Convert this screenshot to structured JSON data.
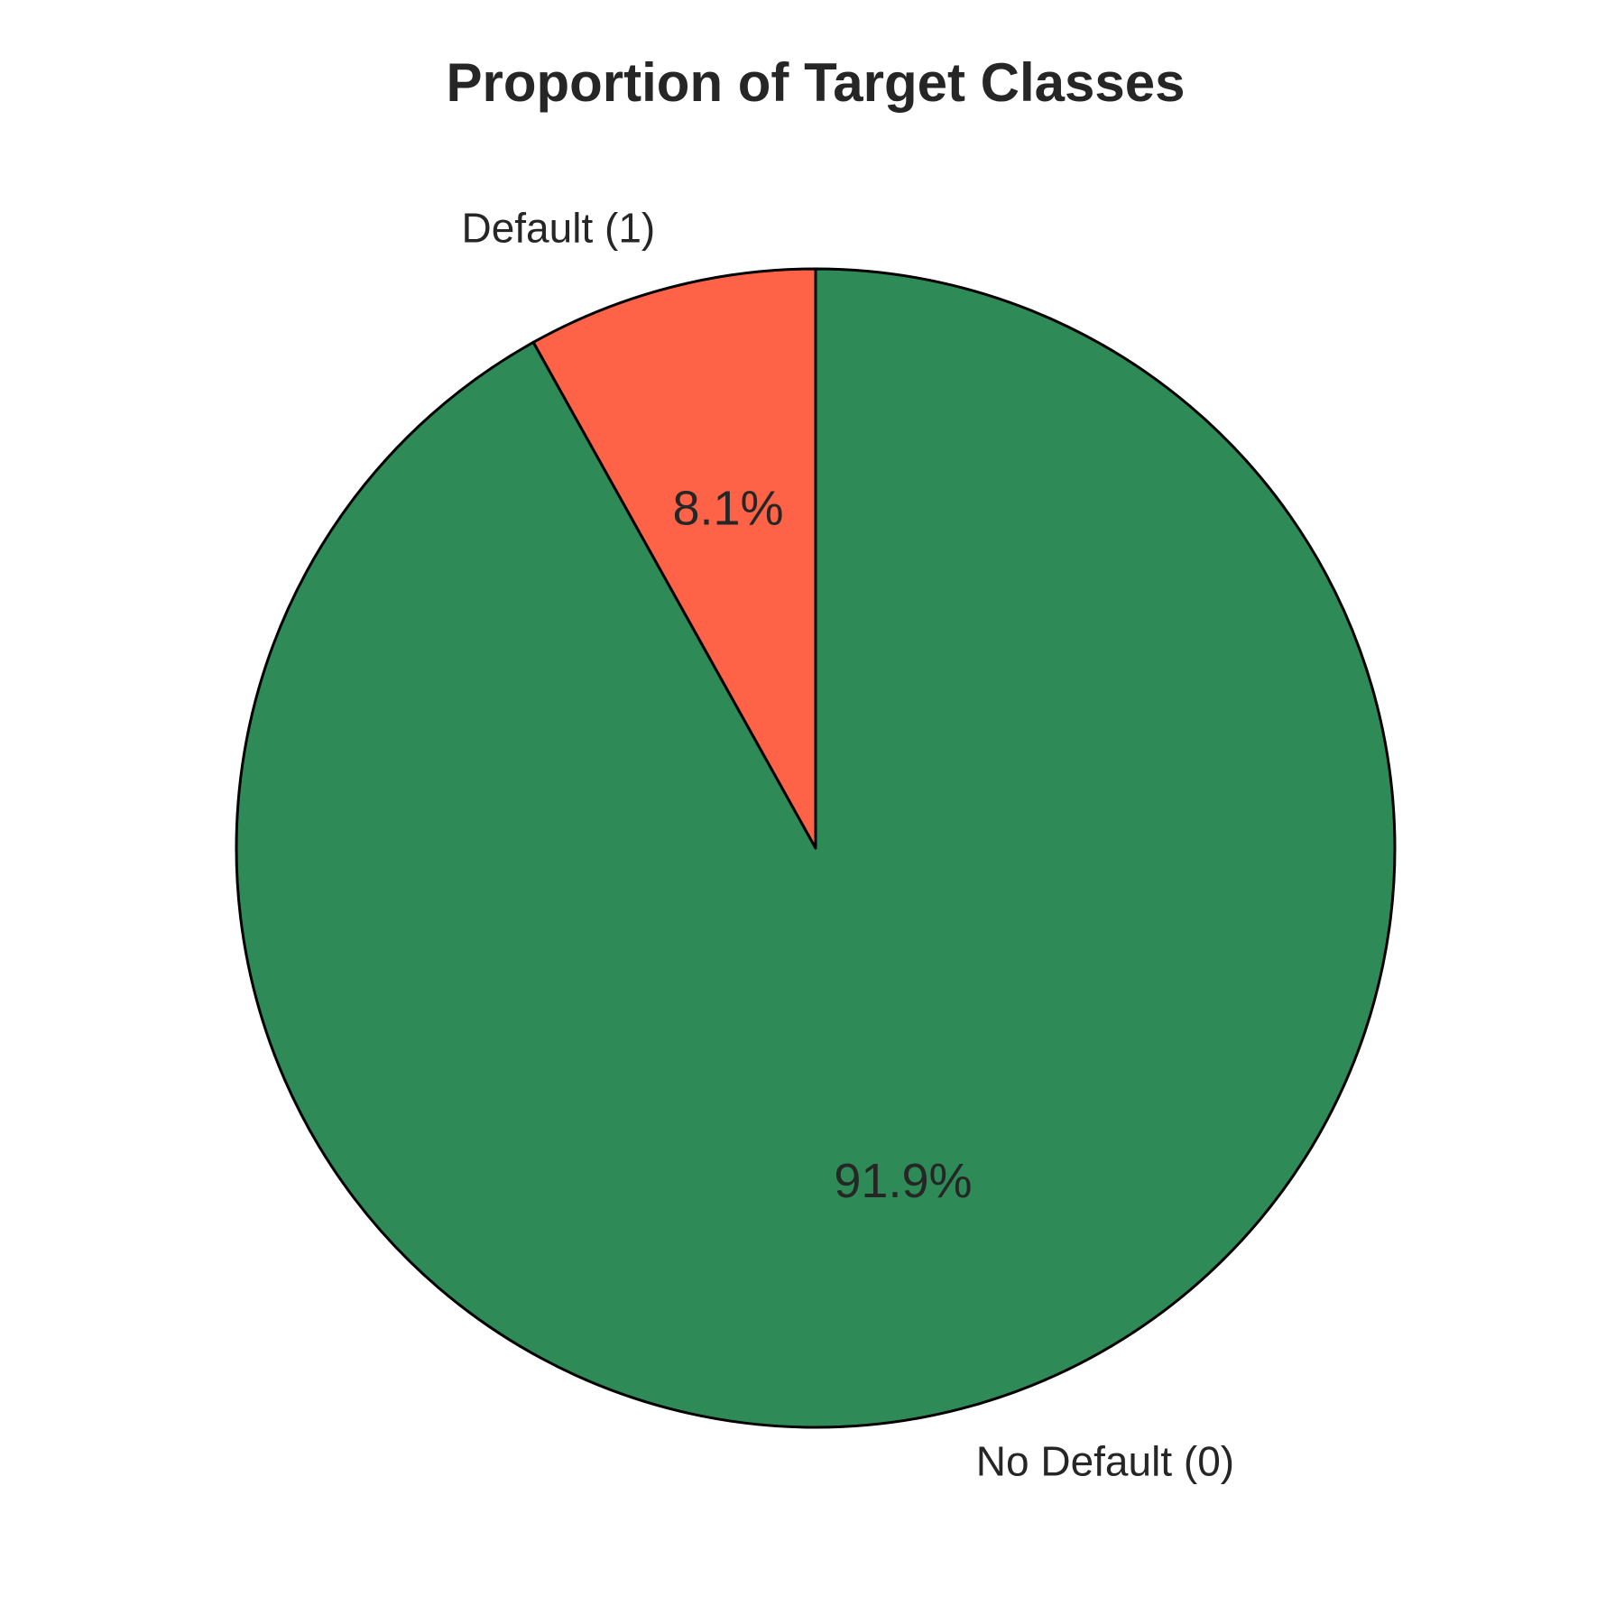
{
  "chart_data": {
    "type": "pie",
    "title": "Proportion of Target Classes",
    "start_angle_deg": 90,
    "direction": "clockwise",
    "edge_color": "#000000",
    "slices": [
      {
        "label": "No Default (0)",
        "value": 91.9,
        "pct_label": "91.9%",
        "color": "#2E8B57"
      },
      {
        "label": "Default (1)",
        "value": 8.1,
        "pct_label": "8.1%",
        "color": "#FF6347"
      }
    ],
    "legend": "none"
  }
}
